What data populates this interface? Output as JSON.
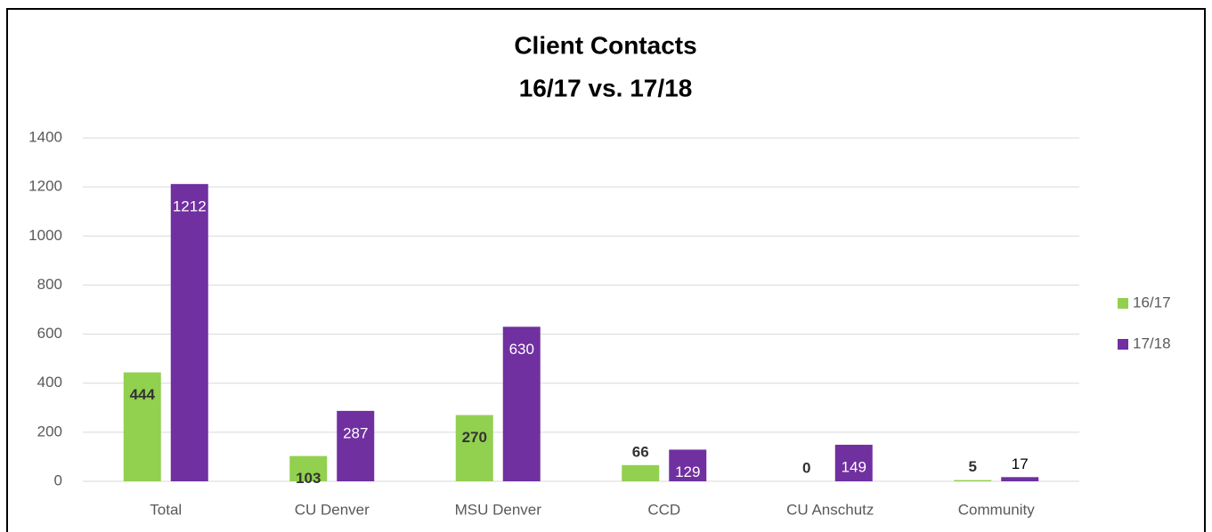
{
  "chart_data": {
    "type": "bar",
    "title": "Client Contacts",
    "subtitle": "16/17 vs. 17/18",
    "categories": [
      "Total",
      "CU Denver",
      "MSU Denver",
      "CCD",
      "CU Anschutz",
      "Community"
    ],
    "series": [
      {
        "name": "16/17",
        "color": "#92d050",
        "values": [
          444,
          103,
          270,
          66,
          0,
          5
        ]
      },
      {
        "name": "17/18",
        "color": "#7030a0",
        "values": [
          1212,
          287,
          630,
          129,
          149,
          17
        ]
      }
    ],
    "ylim": [
      0,
      1400
    ],
    "yticks": [
      0,
      200,
      400,
      600,
      800,
      1000,
      1200,
      1400
    ],
    "grid": true,
    "legend": "right"
  }
}
